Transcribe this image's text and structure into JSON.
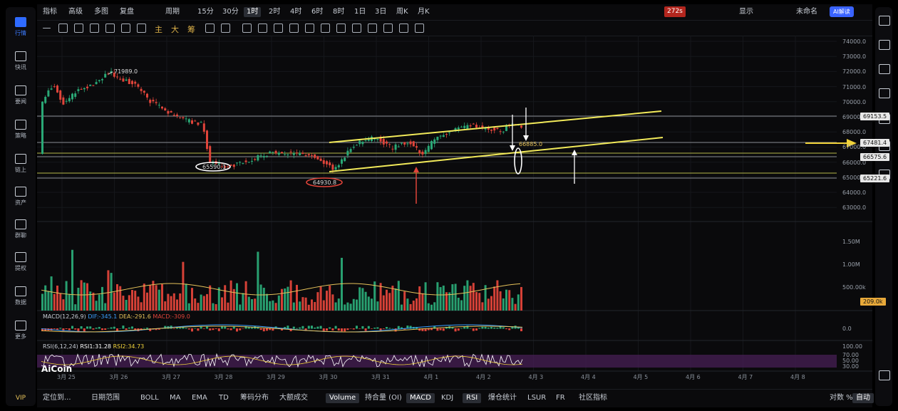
{
  "sidebar": {
    "items": [
      {
        "label": "行情",
        "icon": "chart-icon"
      },
      {
        "label": "快讯",
        "icon": "news-icon"
      },
      {
        "label": "要闻",
        "icon": "document-icon"
      },
      {
        "label": "策略",
        "icon": "robot-icon"
      },
      {
        "label": "链上",
        "icon": "chain-icon"
      },
      {
        "label": "资产",
        "icon": "wallet-icon"
      },
      {
        "label": "群聊",
        "icon": "chat-icon"
      },
      {
        "label": "提权",
        "icon": "grid-icon"
      },
      {
        "label": "数据",
        "icon": "monitor-icon"
      },
      {
        "label": "更多",
        "icon": "more-icon"
      }
    ],
    "vip": "VIP"
  },
  "toolbar": {
    "items": [
      "指标",
      "高级",
      "多图",
      "复盘"
    ],
    "period_label": "周期",
    "timeframes": [
      "15分",
      "30分",
      "1时",
      "2时",
      "4时",
      "6时",
      "8时",
      "1日",
      "3日",
      "周K",
      "月K"
    ],
    "active_timeframe": "1时",
    "countdown": "272s",
    "display_label": "显示",
    "layout_name": "未命名",
    "ai_label": "AI解读"
  },
  "drawing_tools": {
    "labels": [
      "主",
      "大",
      "筹"
    ]
  },
  "price_axis": [
    "74000.0",
    "73000.0",
    "72000.0",
    "71000.0",
    "70000.0",
    "69000.0",
    "68000.0",
    "67000.0",
    "66000.0",
    "65000.0",
    "64000.0",
    "63000.0"
  ],
  "price_tags": [
    {
      "value": "69153.5",
      "style": "white"
    },
    {
      "value": "67481.4",
      "style": "white"
    },
    {
      "value": "66575.6",
      "style": "white"
    },
    {
      "value": "65221.6",
      "style": "white"
    }
  ],
  "annotations": {
    "high": "71989.0",
    "low1": "65590.1",
    "low2": "64930.8",
    "mid": "66885.0"
  },
  "volume_axis": [
    "1.50M",
    "1.00M",
    "500.00k"
  ],
  "volume_tag": "209.0k",
  "macd": {
    "title": "MACD(12,26,9)",
    "dif": "DIF:-345.1",
    "dea": "DEA:-291.6",
    "macd": "MACD:-309.0",
    "axis": "0.0"
  },
  "rsi": {
    "title": "RSI(6,12,24)",
    "rsi1": "RSI1:31.28",
    "rsi2": "RSI2:34.73",
    "axis": [
      "100.00",
      "70.00",
      "50.00",
      "30.00"
    ]
  },
  "x_axis": [
    "3月 25",
    "3月 26",
    "3月 27",
    "3月 28",
    "3月 29",
    "3月 30",
    "3月 31",
    "4月 1",
    "4月 2",
    "4月 3",
    "4月 4",
    "4月 5",
    "4月 6",
    "4月 7",
    "4月 8"
  ],
  "logo": "AiCoin",
  "bottom_bar": {
    "locate": "定位到...",
    "range": "日期范围",
    "indicators": [
      "BOLL",
      "MA",
      "EMA",
      "TD",
      "筹码分布",
      "大额成交"
    ],
    "sub_indicators": [
      "Volume",
      "持合量 (OI)",
      "MACD",
      "KDJ",
      "RSI",
      "爆仓统计",
      "LSUR",
      "FR",
      "社区指标"
    ],
    "active_sub": [
      "Volume",
      "MACD",
      "RSI"
    ],
    "right": [
      "对数",
      "%",
      "自动"
    ]
  },
  "colors": {
    "up": "#2aa876",
    "down": "#e0443a",
    "accent": "#3a63ff",
    "trend": "#f2ea5a"
  }
}
